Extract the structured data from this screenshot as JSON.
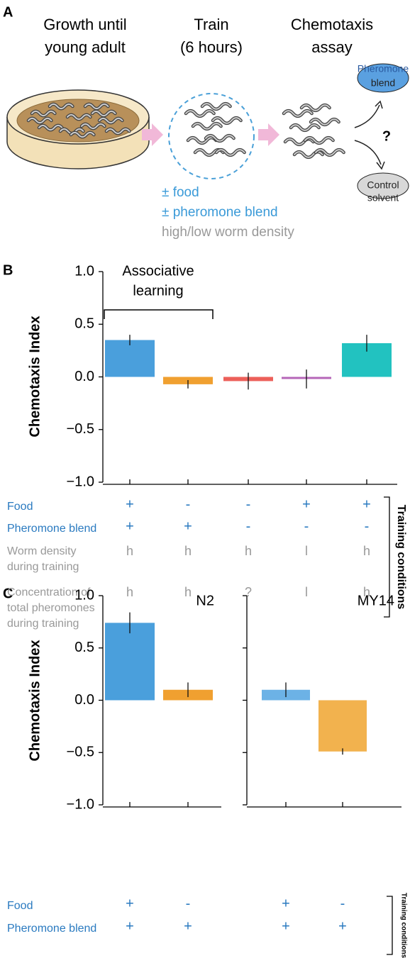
{
  "panel_labels": [
    "A",
    "B",
    "C"
  ],
  "panel_a": {
    "steps": [
      [
        "Growth until",
        "young adult"
      ],
      [
        "Train",
        "(6 hours)"
      ],
      [
        "Chemotaxis",
        "assay"
      ]
    ],
    "training_options": [
      "± food",
      "± pheromone blend",
      "high/low worm density"
    ],
    "choices": [
      [
        "Pheromone",
        "blend"
      ],
      [
        "Control",
        "solvent"
      ]
    ],
    "question": "?"
  },
  "chart_data": [
    {
      "type": "bar",
      "ylabel": "Chemotaxis Index",
      "annotation": [
        "Associative",
        "learning"
      ],
      "values": [
        0.35,
        -0.07,
        -0.04,
        -0.02,
        0.32
      ],
      "errors": [
        0.05,
        0.04,
        0.08,
        0.09,
        0.08
      ],
      "colors": [
        "#4a9fdc",
        "#f0a030",
        "#ec605a",
        "#b565b8",
        "#22c2c0"
      ],
      "ylim": [
        -1,
        1
      ],
      "yticks": [
        {
          "value": -1,
          "label": "−1.0"
        },
        {
          "value": -0.5,
          "label": "−0.5"
        },
        {
          "value": 0,
          "label": "0.0"
        },
        0.5,
        {
          "value": 1,
          "label": "1.0"
        }
      ],
      "conditions": {
        "row_labels": [
          [
            "Food"
          ],
          [
            "Pheromone blend"
          ],
          [
            "Worm density",
            "during training"
          ],
          [
            "Concentration of",
            "total pheromones",
            "during training"
          ]
        ],
        "rows": [
          [
            "+",
            "-",
            "-",
            "+",
            "+"
          ],
          [
            "+",
            "+",
            "-",
            "-",
            "-"
          ],
          [
            "h",
            "h",
            "h",
            "l",
            "h"
          ],
          [
            "h",
            "h",
            "?",
            "l",
            "h"
          ]
        ],
        "side_label": "Training conditions"
      }
    },
    {
      "type": "bar",
      "title": "N2",
      "ylabel": "Chemotaxis Index",
      "values": [
        0.74,
        0.1
      ],
      "errors": [
        0.1,
        0.07
      ],
      "colors": [
        "#4a9fdc",
        "#f0a030"
      ],
      "ylim": [
        -1,
        1
      ],
      "yticks": [
        {
          "value": -1,
          "label": "−1.0"
        },
        {
          "value": -0.5,
          "label": "−0.5"
        },
        {
          "value": 0,
          "label": "0.0"
        },
        0.5,
        {
          "value": 1,
          "label": "1.0"
        }
      ],
      "conditions": {
        "row_labels": [
          [
            "Food"
          ],
          [
            "Pheromone blend"
          ]
        ],
        "rows": [
          [
            "+",
            "-"
          ],
          [
            "+",
            "+"
          ]
        ]
      }
    },
    {
      "type": "bar",
      "title": "MY14",
      "values": [
        0.1,
        -0.49
      ],
      "errors": [
        0.07,
        0.03
      ],
      "colors": [
        "#6cb2e6",
        "#f2b24e"
      ],
      "ylim": [
        -1,
        1
      ],
      "conditions": {
        "rows": [
          [
            "+",
            "-"
          ],
          [
            "+",
            "+"
          ]
        ],
        "side_label": "Training conditions"
      }
    }
  ]
}
